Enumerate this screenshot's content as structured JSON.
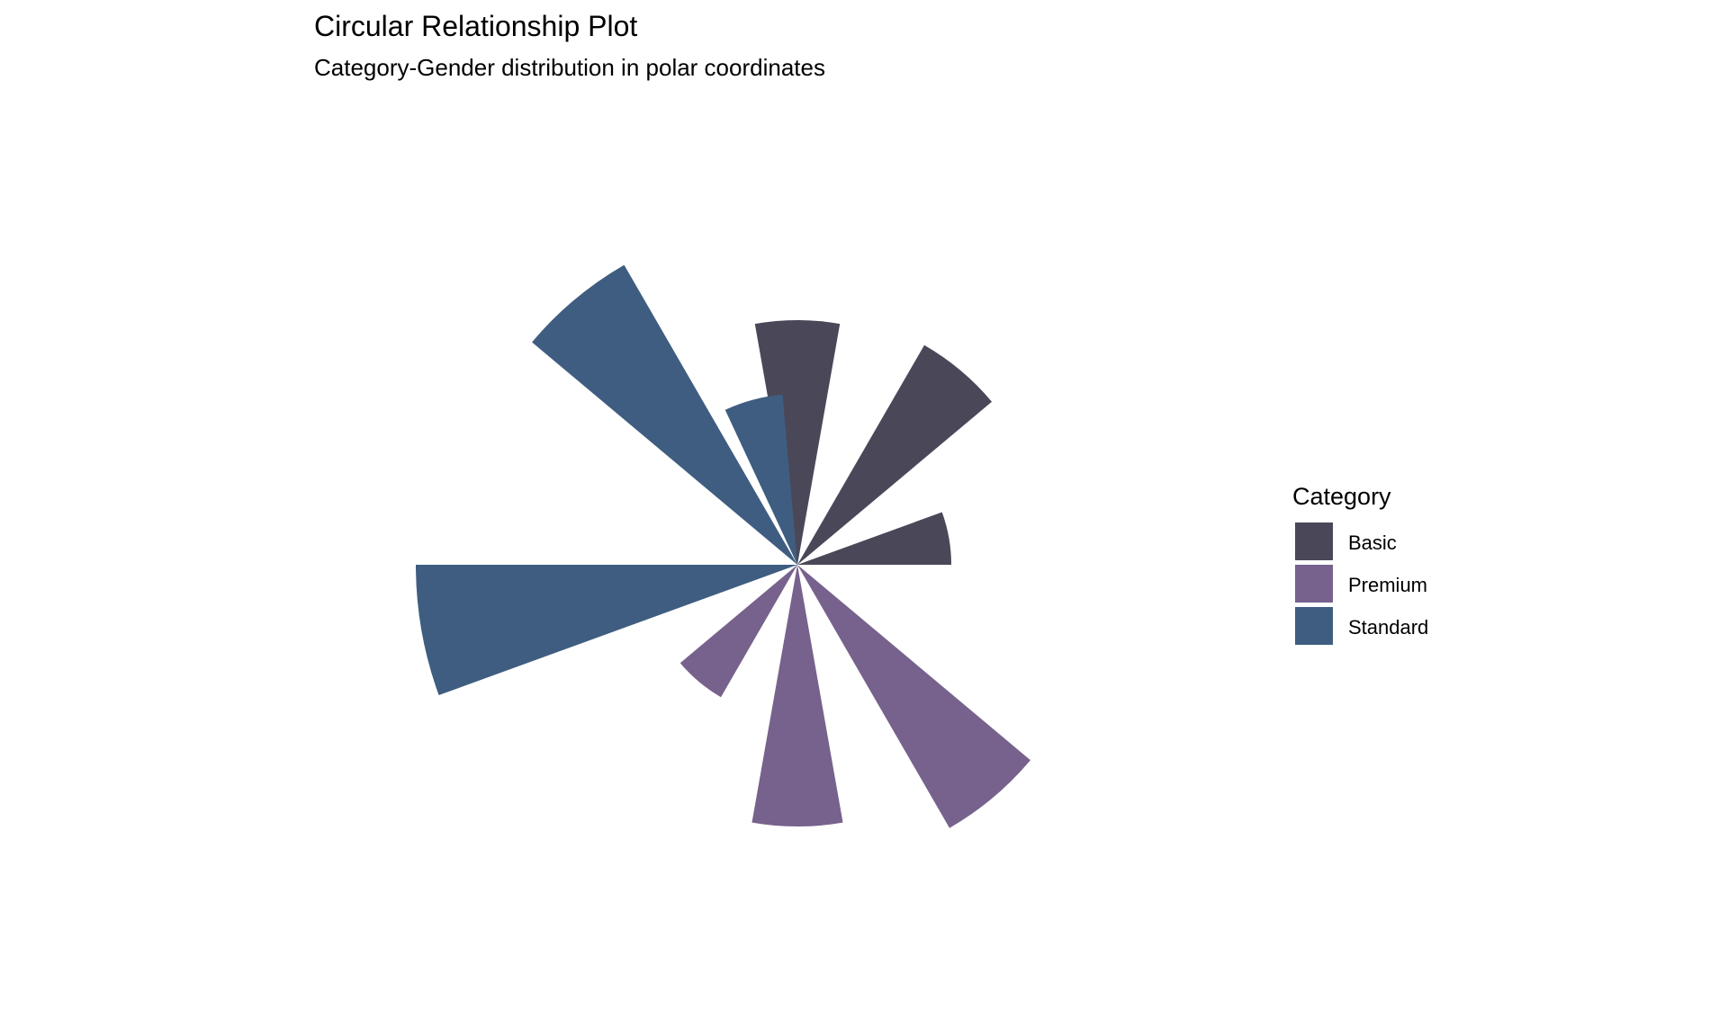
{
  "chart_data": {
    "type": "bar",
    "polar": true,
    "title": "Circular Relationship Plot",
    "subtitle": "Category-Gender distribution in polar coordinates",
    "legend": {
      "title": "Category",
      "placement": "right",
      "entries": [
        {
          "label": "Basic",
          "color": "#4a4858"
        },
        {
          "label": "Premium",
          "color": "#76628c"
        },
        {
          "label": "Standard",
          "color": "#3f5d80"
        }
      ]
    },
    "grid": false,
    "wedges": [
      {
        "category": "Basic",
        "angle_deg": 0,
        "value": 272
      },
      {
        "category": "Basic",
        "angle_deg": 40,
        "value": 282
      },
      {
        "category": "Basic",
        "angle_deg": 80,
        "value": 171
      },
      {
        "category": "Premium",
        "angle_deg": 140,
        "value": 338
      },
      {
        "category": "Premium",
        "angle_deg": 180,
        "value": 291
      },
      {
        "category": "Premium",
        "angle_deg": 220,
        "value": 170
      },
      {
        "category": "Standard",
        "angle_deg": 260,
        "value": 424
      },
      {
        "category": "Standard",
        "angle_deg": 320,
        "value": 385
      },
      {
        "category": "Standard",
        "angle_deg": 345,
        "value": 190
      }
    ]
  }
}
